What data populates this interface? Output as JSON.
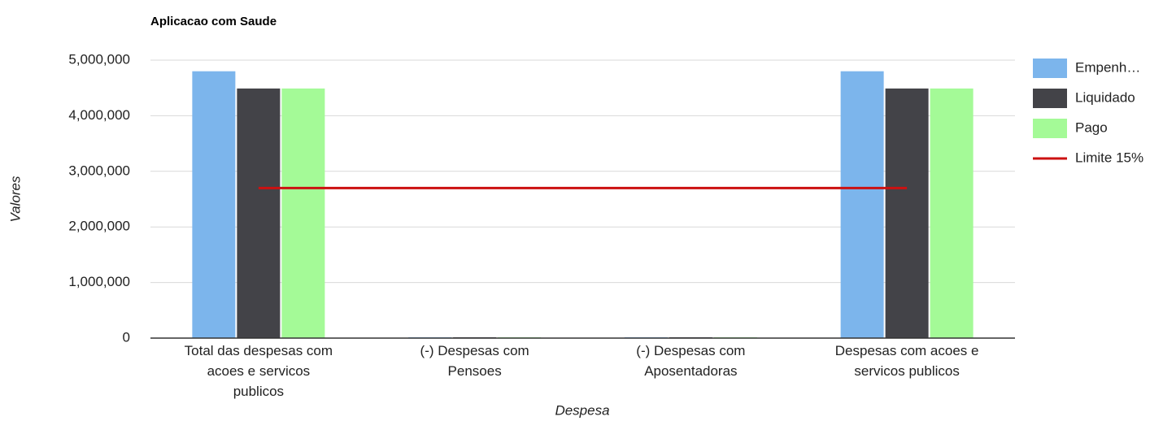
{
  "chart_data": {
    "type": "combo",
    "title": "Aplicacao com Saude",
    "x_label": "Despesa",
    "y_label": "Valores",
    "categories": [
      "Total das despesas com acoes e servicos publicos",
      "(-) Despesas com Pensoes",
      "(-) Despesas com Aposentadoras",
      "Despesas com acoes e servicos publicos"
    ],
    "series": [
      {
        "name": "Empenh…",
        "type": "bar",
        "color": "#7cb5ec",
        "values": [
          4800000,
          0,
          0,
          4800000
        ]
      },
      {
        "name": "Liquidado",
        "type": "bar",
        "color": "#434348",
        "values": [
          4490000,
          0,
          0,
          4490000
        ]
      },
      {
        "name": "Pago",
        "type": "bar",
        "color": "#a4fa97",
        "values": [
          4490000,
          0,
          0,
          4490000
        ]
      },
      {
        "name": "Limite 15%",
        "type": "line",
        "color": "#cc1111",
        "values": [
          2700000,
          2700000,
          2700000,
          2700000
        ]
      }
    ],
    "ylim": [
      0,
      5000000
    ],
    "yticks": [
      0,
      {
        "value": 1000000,
        "label": "1,000,000"
      },
      {
        "value": 2000000,
        "label": "2,000,000"
      },
      {
        "value": 3000000,
        "label": "3,000,000"
      },
      {
        "value": 4000000,
        "label": "4,000,000"
      },
      {
        "value": 5000000,
        "label": "5,000,000"
      }
    ],
    "grid": true,
    "legend": "right"
  }
}
